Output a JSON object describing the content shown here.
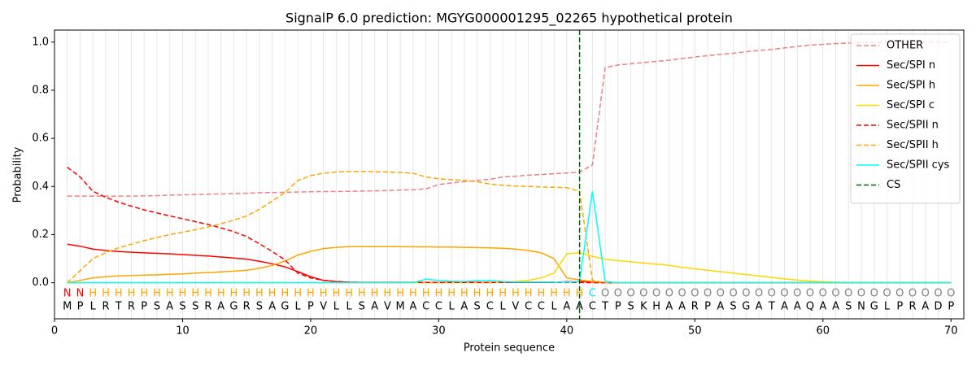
{
  "chart_data": {
    "type": "line",
    "title": "SignalP 6.0 prediction: MGYG000001295_02265 hypothetical protein",
    "xlabel": "Protein sequence",
    "ylabel": "Probability",
    "xlim": [
      0,
      71
    ],
    "ylim": [
      -0.15,
      1.05
    ],
    "xticks": [
      0,
      10,
      20,
      30,
      40,
      50,
      60,
      70
    ],
    "yticks": [
      {
        "value": 0,
        "label": "0.0"
      },
      {
        "value": 0.2,
        "label": "0.2"
      },
      {
        "value": 0.4,
        "label": "0.4"
      },
      {
        "value": 0.6,
        "label": "0.6"
      },
      {
        "value": 0.8,
        "label": "0.8"
      },
      {
        "value": 1,
        "label": "1.0"
      }
    ],
    "grid": "x",
    "legend": "upper right",
    "x": [
      1,
      2,
      3,
      4,
      5,
      6,
      7,
      8,
      9,
      10,
      11,
      12,
      13,
      14,
      15,
      16,
      17,
      18,
      19,
      20,
      21,
      22,
      23,
      24,
      25,
      26,
      27,
      28,
      29,
      30,
      31,
      32,
      33,
      34,
      35,
      36,
      37,
      38,
      39,
      40,
      41,
      42,
      43,
      44,
      45,
      46,
      47,
      48,
      49,
      50,
      51,
      52,
      53,
      54,
      55,
      56,
      57,
      58,
      59,
      60,
      61,
      62,
      63,
      64,
      65,
      66,
      67,
      68,
      69,
      70
    ],
    "residues": [
      "M",
      "P",
      "L",
      "R",
      "T",
      "R",
      "P",
      "S",
      "A",
      "S",
      "S",
      "R",
      "A",
      "G",
      "R",
      "S",
      "A",
      "G",
      "L",
      "P",
      "V",
      "L",
      "L",
      "S",
      "A",
      "V",
      "M",
      "A",
      "C",
      "C",
      "L",
      "A",
      "S",
      "C",
      "L",
      "V",
      "C",
      "C",
      "L",
      "A",
      "A",
      "C",
      "T",
      "P",
      "S",
      "K",
      "H",
      "A",
      "A",
      "R",
      "P",
      "A",
      "S",
      "G",
      "A",
      "T",
      "A",
      "A",
      "Q",
      "A",
      "A",
      "S",
      "N",
      "G",
      "L",
      "P",
      "R",
      "A",
      "D",
      "P"
    ],
    "region_labels": [
      "N",
      "N",
      "H",
      "H",
      "H",
      "H",
      "H",
      "H",
      "H",
      "H",
      "H",
      "H",
      "H",
      "H",
      "H",
      "H",
      "H",
      "H",
      "H",
      "H",
      "H",
      "H",
      "H",
      "H",
      "H",
      "H",
      "H",
      "H",
      "H",
      "H",
      "H",
      "H",
      "H",
      "H",
      "H",
      "H",
      "H",
      "H",
      "H",
      "H",
      "H",
      "C",
      "O",
      "O",
      "O",
      "O",
      "O",
      "O",
      "O",
      "O",
      "O",
      "O",
      "O",
      "O",
      "O",
      "O",
      "O",
      "O",
      "O",
      "O",
      "O",
      "O",
      "O",
      "O",
      "O",
      "O",
      "O",
      "O",
      "O",
      "O"
    ],
    "region_colors": {
      "N": "#ff0000",
      "H": "#ffa500",
      "C": "#00e5e5",
      "O": "#808080"
    },
    "series": [
      {
        "name": "OTHER",
        "color": "#f08080",
        "linestyle": "dashed",
        "values": [
          0.36,
          0.36,
          0.36,
          0.36,
          0.36,
          0.36,
          0.361,
          0.362,
          0.364,
          0.365,
          0.366,
          0.368,
          0.369,
          0.371,
          0.372,
          0.374,
          0.375,
          0.376,
          0.377,
          0.378,
          0.379,
          0.379,
          0.38,
          0.381,
          0.382,
          0.383,
          0.385,
          0.386,
          0.39,
          0.408,
          0.415,
          0.42,
          0.425,
          0.43,
          0.44,
          0.443,
          0.447,
          0.45,
          0.453,
          0.456,
          0.46,
          0.49,
          0.895,
          0.905,
          0.91,
          0.915,
          0.92,
          0.925,
          0.932,
          0.938,
          0.944,
          0.949,
          0.954,
          0.96,
          0.965,
          0.97,
          0.976,
          0.982,
          0.987,
          0.991,
          0.994,
          0.996,
          0.998,
          0.999,
          1.0,
          1.0,
          1.0,
          1.0,
          1.0,
          1.0
        ]
      },
      {
        "name": "Sec/SPI n",
        "color": "#ff0000",
        "linestyle": "solid",
        "values": [
          0.16,
          0.152,
          0.14,
          0.134,
          0.13,
          0.127,
          0.124,
          0.122,
          0.12,
          0.117,
          0.114,
          0.111,
          0.107,
          0.103,
          0.098,
          0.089,
          0.079,
          0.066,
          0.046,
          0.025,
          0.01,
          0.005,
          0.002,
          0.001,
          0.001,
          0.001,
          0.001,
          0.001,
          0.001,
          0.001,
          0.001,
          0.001,
          0.001,
          0.001,
          0.001,
          0.001,
          0.001,
          0.001,
          0.002,
          0.004,
          0.005,
          0.003,
          0,
          0,
          0,
          0,
          0,
          0,
          0,
          0,
          0,
          0,
          0,
          0,
          0,
          0,
          0,
          0,
          0,
          0,
          0,
          0,
          0,
          0,
          0,
          0,
          0,
          0,
          0,
          0
        ]
      },
      {
        "name": "Sec/SPI h",
        "color": "#ffa500",
        "linestyle": "solid",
        "values": [
          0,
          0.01,
          0.02,
          0.025,
          0.028,
          0.03,
          0.032,
          0.033,
          0.035,
          0.037,
          0.04,
          0.042,
          0.045,
          0.048,
          0.052,
          0.06,
          0.072,
          0.09,
          0.115,
          0.13,
          0.142,
          0.147,
          0.15,
          0.15,
          0.15,
          0.15,
          0.15,
          0.149,
          0.149,
          0.148,
          0.148,
          0.147,
          0.146,
          0.145,
          0.143,
          0.14,
          0.134,
          0.124,
          0.1,
          0.02,
          0.012,
          0.005,
          0,
          0,
          0,
          0,
          0,
          0,
          0,
          0,
          0,
          0,
          0,
          0,
          0,
          0,
          0,
          0,
          0,
          0,
          0,
          0,
          0,
          0,
          0,
          0,
          0,
          0,
          0,
          0
        ]
      },
      {
        "name": "Sec/SPI c",
        "color": "#ffd700",
        "linestyle": "solid",
        "values": [
          0,
          0,
          0,
          0,
          0,
          0,
          0,
          0,
          0,
          0,
          0,
          0,
          0,
          0,
          0,
          0,
          0,
          0,
          0,
          0,
          0,
          0,
          0,
          0,
          0,
          0,
          0,
          0,
          0,
          0,
          0,
          0,
          0,
          0,
          0.002,
          0.005,
          0.01,
          0.02,
          0.04,
          0.12,
          0.125,
          0.11,
          0.097,
          0.092,
          0.087,
          0.082,
          0.077,
          0.072,
          0.064,
          0.058,
          0.052,
          0.046,
          0.04,
          0.034,
          0.028,
          0.022,
          0.016,
          0.011,
          0.007,
          0.004,
          0.002,
          0.001,
          0,
          0,
          0,
          0,
          0,
          0,
          0,
          0
        ]
      },
      {
        "name": "Sec/SPII n",
        "color": "#ff0000",
        "linestyle": "dashed",
        "values": [
          0.48,
          0.44,
          0.38,
          0.355,
          0.335,
          0.318,
          0.303,
          0.29,
          0.278,
          0.266,
          0.254,
          0.242,
          0.228,
          0.212,
          0.192,
          0.162,
          0.13,
          0.095,
          0.04,
          0.02,
          0.01,
          0.005,
          0.002,
          0.001,
          0.001,
          0.001,
          0.001,
          0.001,
          0.001,
          0.001,
          0.001,
          0.001,
          0.001,
          0.001,
          0.001,
          0.001,
          0.001,
          0.001,
          0.001,
          0.001,
          0.001,
          0,
          0,
          0,
          0,
          0,
          0,
          0,
          0,
          0,
          0,
          0,
          0,
          0,
          0,
          0,
          0,
          0,
          0,
          0,
          0,
          0,
          0,
          0,
          0,
          0,
          0,
          0,
          0,
          0
        ]
      },
      {
        "name": "Sec/SPII h",
        "color": "#ffa500",
        "linestyle": "dashed",
        "values": [
          0,
          0.05,
          0.1,
          0.125,
          0.145,
          0.16,
          0.175,
          0.188,
          0.2,
          0.21,
          0.22,
          0.232,
          0.245,
          0.26,
          0.278,
          0.305,
          0.34,
          0.375,
          0.425,
          0.445,
          0.455,
          0.46,
          0.462,
          0.462,
          0.461,
          0.46,
          0.458,
          0.455,
          0.44,
          0.432,
          0.428,
          0.425,
          0.42,
          0.41,
          0.405,
          0.402,
          0.4,
          0.398,
          0.397,
          0.395,
          0.38,
          0.01,
          0,
          0,
          0,
          0,
          0,
          0,
          0,
          0,
          0,
          0,
          0,
          0,
          0,
          0,
          0,
          0,
          0,
          0,
          0,
          0,
          0,
          0,
          0,
          0,
          0,
          0,
          0,
          0
        ]
      },
      {
        "name": "Sec/SPII cys",
        "color": "#00ffff",
        "linestyle": "solid",
        "values": [
          0,
          0,
          0,
          0,
          0,
          0,
          0,
          0,
          0,
          0,
          0,
          0,
          0,
          0,
          0,
          0,
          0,
          0,
          0,
          0,
          0,
          0,
          0,
          0,
          0,
          0,
          0,
          0,
          0.015,
          0.01,
          0.006,
          0.005,
          0.008,
          0.01,
          0.005,
          0.003,
          0.003,
          0.003,
          0.003,
          0.003,
          0.005,
          0.38,
          0.005,
          0,
          0,
          0,
          0,
          0,
          0,
          0,
          0,
          0,
          0,
          0,
          0,
          0,
          0,
          0,
          0,
          0,
          0,
          0,
          0,
          0,
          0,
          0,
          0,
          0,
          0,
          0
        ]
      }
    ],
    "cs": {
      "name": "CS",
      "color": "#006400",
      "linestyle": "dashed",
      "x": 41
    }
  }
}
